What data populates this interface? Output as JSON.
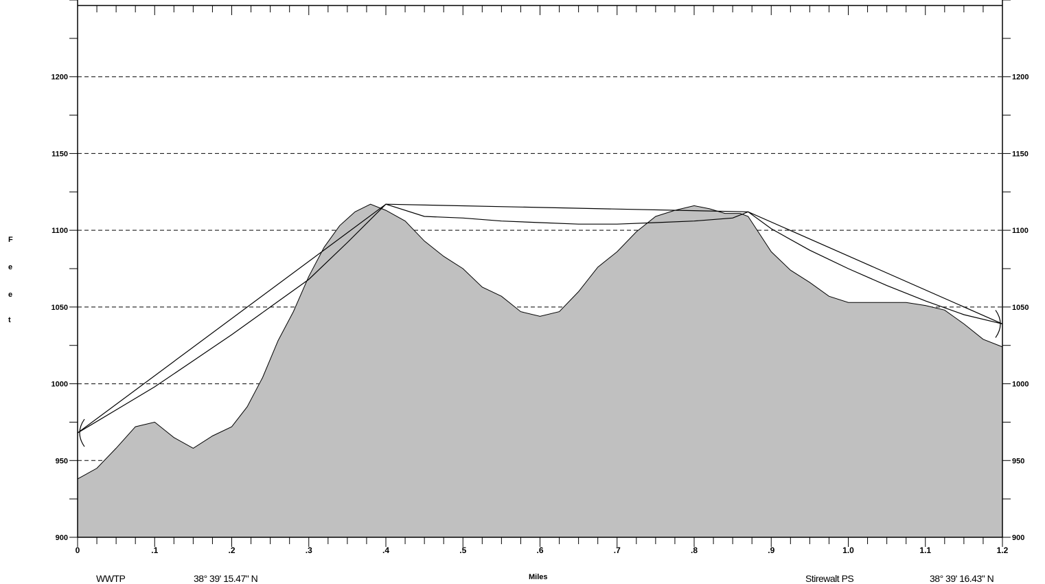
{
  "chart_data": {
    "type": "area",
    "xlabel": "Miles",
    "ylabel": "Feet",
    "xlim": [
      0,
      1.2
    ],
    "ylim": [
      900,
      1250
    ],
    "y_ticks": [
      900,
      950,
      1000,
      1050,
      1100,
      1150,
      1200
    ],
    "x_ticks": [
      "0",
      ".1",
      ".2",
      ".3",
      ".4",
      ".5",
      ".6",
      ".7",
      ".8",
      ".9",
      "1.0",
      "1.1",
      "1.2"
    ],
    "grid": "dashed horizontal lines at 50 ft",
    "series": [
      {
        "kind": "terrain",
        "x": [
          0,
          0.025,
          0.05,
          0.075,
          0.1,
          0.125,
          0.15,
          0.175,
          0.2,
          0.22,
          0.24,
          0.26,
          0.28,
          0.3,
          0.32,
          0.34,
          0.36,
          0.38,
          0.4,
          0.425,
          0.45,
          0.475,
          0.5,
          0.525,
          0.55,
          0.575,
          0.6,
          0.625,
          0.65,
          0.675,
          0.7,
          0.725,
          0.75,
          0.775,
          0.8,
          0.82,
          0.84,
          0.86,
          0.87,
          0.9,
          0.925,
          0.95,
          0.975,
          1.0,
          1.025,
          1.05,
          1.075,
          1.1,
          1.125,
          1.15,
          1.175,
          1.2
        ],
        "y": [
          938,
          945,
          958,
          972,
          975,
          965,
          958,
          966,
          972,
          985,
          1004,
          1028,
          1047,
          1070,
          1089,
          1103,
          1112,
          1117,
          1113,
          1106,
          1093,
          1083,
          1075,
          1063,
          1057,
          1047,
          1044,
          1047,
          1060,
          1076,
          1086,
          1099,
          1109,
          1113,
          1116,
          1114,
          1111,
          1111,
          1109,
          1086,
          1074,
          1066,
          1057,
          1053,
          1053,
          1053,
          1053,
          1051,
          1048,
          1039,
          1029,
          1024
        ]
      },
      {
        "kind": "line of sight",
        "x": [
          0,
          0.4,
          0.87,
          1.2
        ],
        "y": [
          968,
          1117,
          1112,
          1039
        ]
      },
      {
        "kind": "fresnel clearance",
        "x": [
          0,
          0.05,
          0.1,
          0.15,
          0.2,
          0.25,
          0.3,
          0.35,
          0.4,
          0.45,
          0.5,
          0.55,
          0.6,
          0.65,
          0.7,
          0.75,
          0.8,
          0.85,
          0.87,
          0.9,
          0.95,
          1.0,
          1.05,
          1.1,
          1.15,
          1.2
        ],
        "y": [
          968,
          983,
          998,
          1015,
          1032,
          1050,
          1068,
          1092,
          1117,
          1109,
          1108,
          1106,
          1105,
          1104,
          1104,
          1105,
          1106,
          1108,
          1112,
          1101,
          1087,
          1075,
          1064,
          1054,
          1045,
          1039
        ]
      }
    ]
  },
  "labels": {
    "axis_title_x": "Miles",
    "axis_title_y_letters": [
      "F",
      "e",
      "e",
      "t"
    ],
    "left_site": "WWTP",
    "left_coord": "38° 39' 15.47\" N",
    "right_site": "Stirewalt PS",
    "right_coord": "38° 39' 16.43\" N"
  },
  "colors": {
    "terrain_fill": "#c0c0c0",
    "line": "#000000",
    "background": "#ffffff"
  }
}
